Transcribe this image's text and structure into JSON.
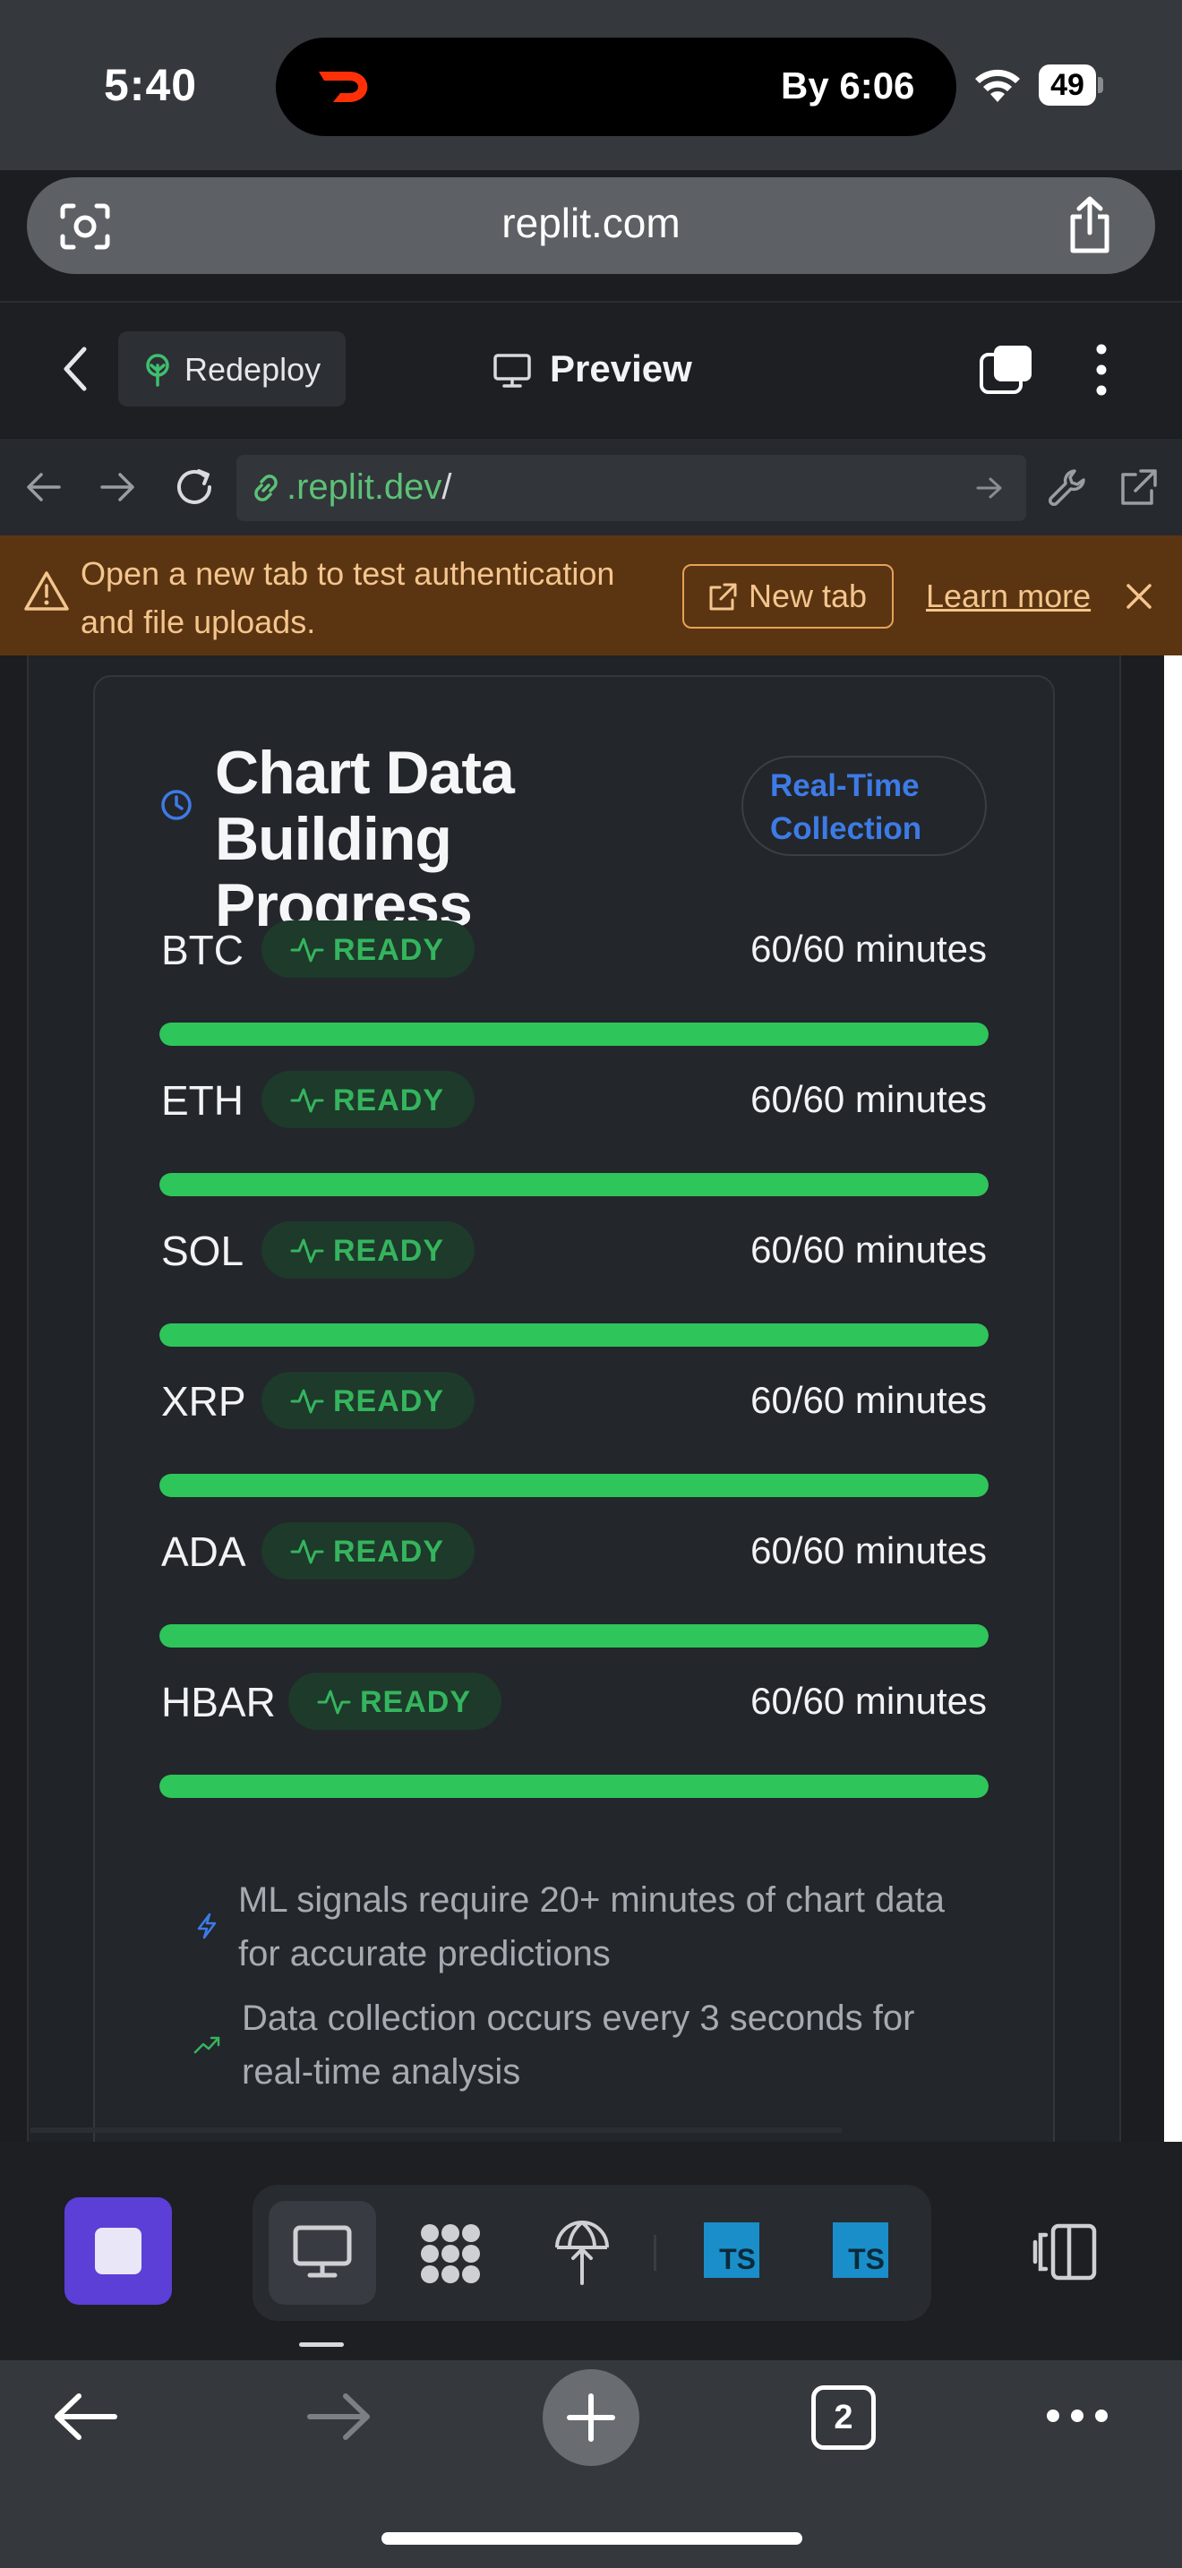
{
  "status_bar": {
    "time": "5:40",
    "eta": "By 6:06",
    "battery": "49"
  },
  "browser": {
    "url": "replit.com"
  },
  "replit_header": {
    "redeploy_label": "Redeploy",
    "preview_label": "Preview"
  },
  "webview": {
    "address_domain": ".replit.dev",
    "address_path": "/"
  },
  "banner": {
    "message": "Open a new tab to test authentication and file uploads.",
    "new_tab_label": "New tab",
    "learn_more_label": "Learn more"
  },
  "card": {
    "title": "Chart Data Building Progress",
    "badge": "Real-Time Collection",
    "rows": [
      {
        "symbol": "BTC",
        "status": "READY",
        "progress": "60/60 minutes",
        "value": 60,
        "max": 60
      },
      {
        "symbol": "ETH",
        "status": "READY",
        "progress": "60/60 minutes",
        "value": 60,
        "max": 60
      },
      {
        "symbol": "SOL",
        "status": "READY",
        "progress": "60/60 minutes",
        "value": 60,
        "max": 60
      },
      {
        "symbol": "XRP",
        "status": "READY",
        "progress": "60/60 minutes",
        "value": 60,
        "max": 60
      },
      {
        "symbol": "ADA",
        "status": "READY",
        "progress": "60/60 minutes",
        "value": 60,
        "max": 60
      },
      {
        "symbol": "HBAR",
        "status": "READY",
        "progress": "60/60 minutes",
        "value": 60,
        "max": 60
      }
    ],
    "notes": [
      {
        "icon": "lightning-icon",
        "text": "ML signals require 20+ minutes of chart data for accurate predictions"
      },
      {
        "icon": "trending-up-icon",
        "text": "Data collection occurs every 3 seconds for real-time analysis"
      }
    ]
  },
  "toolbar": {
    "ts_label_1": "TS",
    "ts_label_2": "TS"
  },
  "safari_bottom": {
    "tab_count": "2"
  },
  "colors": {
    "accent_green": "#2ec55a",
    "badge_blue": "#3d7be6",
    "banner_bg": "#5b3511",
    "stop_purple": "#5b3fd6"
  }
}
